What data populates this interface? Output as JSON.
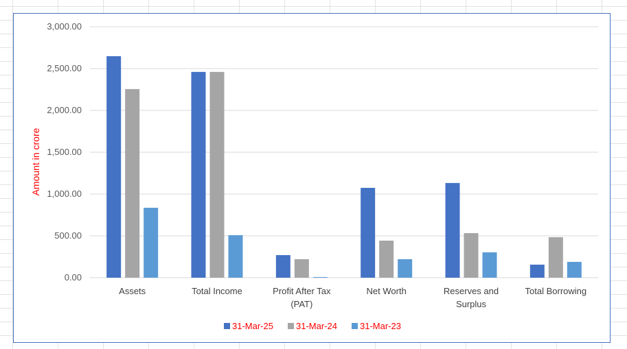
{
  "chart_data": {
    "type": "bar",
    "title": "",
    "xlabel": "",
    "ylabel": "Amount in crore",
    "ylim": [
      0,
      3000
    ],
    "yticks": [
      "0.00",
      "500.00",
      "1,000.00",
      "1,500.00",
      "2,000.00",
      "2,500.00",
      "3,000.00"
    ],
    "ytick_values": [
      0,
      500,
      1000,
      1500,
      2000,
      2500,
      3000
    ],
    "grid": true,
    "legend_position": "bottom",
    "categories": [
      [
        "Assets"
      ],
      [
        "Total Income"
      ],
      [
        "Profit After Tax",
        "(PAT)"
      ],
      [
        "Net Worth"
      ],
      [
        "Reserves and",
        "Surplus"
      ],
      [
        "Total Borrowing"
      ]
    ],
    "series": [
      {
        "name": "31-Mar-25",
        "color": "#4472c4",
        "values": [
          2648,
          2460,
          270,
          1074,
          1132,
          156
        ]
      },
      {
        "name": "31-Mar-24",
        "color": "#a5a5a5",
        "values": [
          2255,
          2460,
          221,
          443,
          533,
          484
        ]
      },
      {
        "name": "31-Mar-23",
        "color": "#5b9bd5",
        "values": [
          836,
          508,
          8,
          221,
          303,
          189
        ]
      }
    ]
  }
}
